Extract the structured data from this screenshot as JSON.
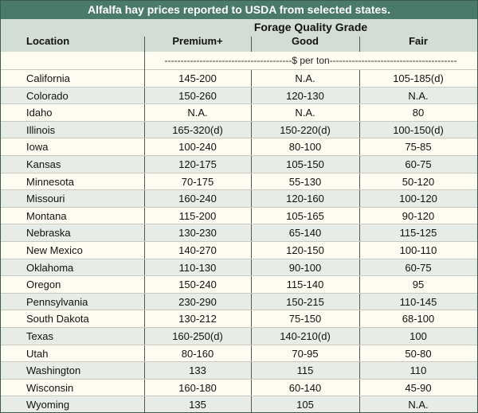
{
  "title": "Alfalfa hay prices reported to USDA from selected states.",
  "header": {
    "location": "Location",
    "group": "Forage Quality Grade",
    "columns": [
      "Premium+",
      "Good",
      "Fair"
    ]
  },
  "unit_text": "----------------------------------------$ per ton----------------------------------------",
  "rows": [
    {
      "location": "California",
      "premium": "145-200",
      "good": "N.A.",
      "fair": "105-185(d)"
    },
    {
      "location": "Colorado",
      "premium": "150-260",
      "good": "120-130",
      "fair": "N.A."
    },
    {
      "location": "Idaho",
      "premium": "N.A.",
      "good": "N.A.",
      "fair": "80"
    },
    {
      "location": "Illinois",
      "premium": "165-320(d)",
      "good": "150-220(d)",
      "fair": "100-150(d)"
    },
    {
      "location": "Iowa",
      "premium": "100-240",
      "good": "80-100",
      "fair": "75-85"
    },
    {
      "location": "Kansas",
      "premium": "120-175",
      "good": "105-150",
      "fair": "60-75"
    },
    {
      "location": "Minnesota",
      "premium": "70-175",
      "good": "55-130",
      "fair": "50-120"
    },
    {
      "location": "Missouri",
      "premium": "160-240",
      "good": "120-160",
      "fair": "100-120"
    },
    {
      "location": "Montana",
      "premium": "115-200",
      "good": "105-165",
      "fair": "90-120"
    },
    {
      "location": "Nebraska",
      "premium": "130-230",
      "good": "65-140",
      "fair": "115-125"
    },
    {
      "location": "New Mexico",
      "premium": "140-270",
      "good": "120-150",
      "fair": "100-110"
    },
    {
      "location": "Oklahoma",
      "premium": "110-130",
      "good": "90-100",
      "fair": "60-75"
    },
    {
      "location": "Oregon",
      "premium": "150-240",
      "good": "115-140",
      "fair": "95"
    },
    {
      "location": "Pennsylvania",
      "premium": "230-290",
      "good": "150-215",
      "fair": "110-145"
    },
    {
      "location": "South Dakota",
      "premium": "130-212",
      "good": "75-150",
      "fair": "68-100"
    },
    {
      "location": "Texas",
      "premium": "160-250(d)",
      "good": "140-210(d)",
      "fair": "100"
    },
    {
      "location": "Utah",
      "premium": "80-160",
      "good": "70-95",
      "fair": "50-80"
    },
    {
      "location": "Washington",
      "premium": "133",
      "good": "115",
      "fair": "110"
    },
    {
      "location": "Wisconsin",
      "premium": "160-180",
      "good": "60-140",
      "fair": "45-90"
    },
    {
      "location": "Wyoming",
      "premium": "135",
      "good": "105",
      "fair": "N.A."
    }
  ],
  "colors": {
    "title_bg": "#4a7a6a",
    "header_bg": "#d2ddd4",
    "row_light": "#fffdf1",
    "row_dark": "#e7ece6"
  }
}
